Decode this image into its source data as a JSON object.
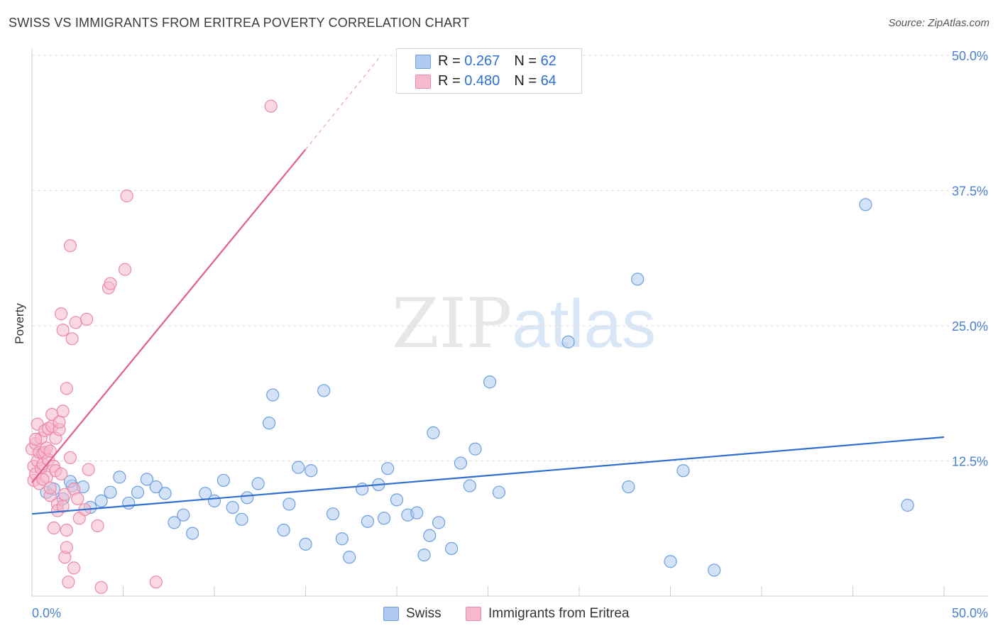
{
  "title": "SWISS VS IMMIGRANTS FROM ERITREA POVERTY CORRELATION CHART",
  "source": "Source: ZipAtlas.com",
  "watermark": {
    "zip": "ZIP",
    "atlas": "atlas"
  },
  "legend_stats": [
    {
      "r_label": "R =",
      "r_value": "0.267",
      "n_label": "N =",
      "n_value": "62",
      "color": "#aecbef"
    },
    {
      "r_label": "R =",
      "r_value": "0.480",
      "n_label": "N =",
      "n_value": "64",
      "color": "#f6b8cb"
    }
  ],
  "chart_data": {
    "type": "scatter",
    "title": "SWISS VS IMMIGRANTS FROM ERITREA POVERTY CORRELATION CHART",
    "xlabel": "",
    "ylabel": "Poverty",
    "xlim": [
      0,
      50
    ],
    "ylim": [
      0,
      50
    ],
    "x_tick_labels": [
      "0.0%",
      "50.0%"
    ],
    "y_tick_labels": [
      "12.5%",
      "25.0%",
      "37.5%",
      "50.0%"
    ],
    "y_ticks": [
      12.5,
      25.0,
      37.5,
      50.0
    ],
    "grid": "horizontal dashed",
    "legend_position": "bottom",
    "series": [
      {
        "name": "Swiss",
        "color": "#aecbef",
        "stroke": "#6c9fe0",
        "trend": {
          "x": [
            0,
            50
          ],
          "y": [
            7.6,
            14.7
          ],
          "color": "#2f6fd0"
        },
        "points": [
          [
            0.8,
            9.6
          ],
          [
            1.2,
            9.9
          ],
          [
            1.7,
            9.0
          ],
          [
            2.2,
            10.2
          ],
          [
            2.8,
            10.1
          ],
          [
            3.2,
            8.2
          ],
          [
            3.8,
            8.8
          ],
          [
            4.3,
            9.6
          ],
          [
            4.8,
            11.0
          ],
          [
            5.3,
            8.6
          ],
          [
            5.8,
            9.6
          ],
          [
            6.3,
            10.8
          ],
          [
            6.8,
            10.1
          ],
          [
            7.3,
            9.5
          ],
          [
            7.8,
            6.8
          ],
          [
            8.3,
            7.5
          ],
          [
            8.8,
            5.8
          ],
          [
            9.5,
            9.5
          ],
          [
            10.0,
            8.8
          ],
          [
            10.5,
            10.7
          ],
          [
            11.0,
            8.2
          ],
          [
            11.5,
            7.1
          ],
          [
            11.8,
            9.1
          ],
          [
            12.4,
            10.4
          ],
          [
            13.0,
            16.0
          ],
          [
            13.2,
            18.6
          ],
          [
            13.8,
            6.1
          ],
          [
            14.1,
            8.5
          ],
          [
            14.6,
            11.9
          ],
          [
            15.0,
            4.8
          ],
          [
            15.3,
            11.6
          ],
          [
            16.0,
            19.0
          ],
          [
            16.5,
            7.6
          ],
          [
            17.0,
            5.3
          ],
          [
            17.4,
            3.6
          ],
          [
            18.1,
            9.9
          ],
          [
            18.4,
            6.9
          ],
          [
            19.0,
            10.3
          ],
          [
            19.3,
            7.2
          ],
          [
            19.5,
            11.8
          ],
          [
            20.0,
            8.9
          ],
          [
            20.6,
            7.5
          ],
          [
            21.1,
            7.7
          ],
          [
            21.5,
            3.8
          ],
          [
            21.8,
            5.6
          ],
          [
            22.0,
            15.1
          ],
          [
            22.3,
            6.8
          ],
          [
            23.0,
            4.4
          ],
          [
            23.5,
            12.3
          ],
          [
            24.0,
            10.2
          ],
          [
            24.3,
            13.6
          ],
          [
            25.1,
            19.8
          ],
          [
            25.6,
            9.6
          ],
          [
            29.4,
            23.5
          ],
          [
            32.7,
            10.1
          ],
          [
            33.2,
            29.3
          ],
          [
            35.0,
            3.2
          ],
          [
            35.7,
            11.6
          ],
          [
            37.4,
            2.4
          ],
          [
            45.7,
            36.2
          ],
          [
            48.0,
            8.4
          ],
          [
            2.1,
            10.6
          ]
        ]
      },
      {
        "name": "Immigrants from Eritrea",
        "color": "#f6b8cb",
        "stroke": "#ea8aa8",
        "trend": {
          "x": [
            0,
            15
          ],
          "y": [
            10.5,
            41.3
          ],
          "color": "#e0608a"
        },
        "trend_dashed": {
          "x": [
            15,
            19
          ],
          "y": [
            41.3,
            49.7
          ],
          "color": "#e8a2b9"
        },
        "points": [
          [
            0.0,
            13.6
          ],
          [
            0.1,
            12.0
          ],
          [
            0.1,
            10.7
          ],
          [
            0.2,
            11.3
          ],
          [
            0.2,
            14.1
          ],
          [
            0.3,
            15.9
          ],
          [
            0.3,
            12.5
          ],
          [
            0.4,
            13.3
          ],
          [
            0.4,
            10.4
          ],
          [
            0.5,
            11.8
          ],
          [
            0.5,
            14.6
          ],
          [
            0.6,
            13.2
          ],
          [
            0.6,
            12.2
          ],
          [
            0.7,
            13.3
          ],
          [
            0.7,
            15.3
          ],
          [
            0.8,
            13.7
          ],
          [
            0.8,
            11.0
          ],
          [
            0.9,
            12.6
          ],
          [
            0.9,
            15.5
          ],
          [
            1.0,
            9.3
          ],
          [
            1.0,
            13.4
          ],
          [
            1.1,
            15.7
          ],
          [
            1.1,
            16.8
          ],
          [
            1.2,
            12.0
          ],
          [
            1.2,
            6.3
          ],
          [
            1.3,
            11.6
          ],
          [
            1.3,
            14.6
          ],
          [
            1.4,
            8.5
          ],
          [
            1.4,
            7.9
          ],
          [
            1.5,
            15.4
          ],
          [
            1.5,
            16.1
          ],
          [
            1.6,
            11.3
          ],
          [
            1.6,
            26.1
          ],
          [
            1.7,
            24.6
          ],
          [
            1.7,
            17.1
          ],
          [
            1.8,
            3.6
          ],
          [
            1.8,
            9.4
          ],
          [
            1.9,
            6.1
          ],
          [
            1.9,
            4.5
          ],
          [
            2.0,
            1.3
          ],
          [
            2.1,
            12.8
          ],
          [
            2.1,
            32.4
          ],
          [
            2.2,
            23.8
          ],
          [
            2.3,
            2.6
          ],
          [
            2.3,
            9.9
          ],
          [
            2.4,
            25.3
          ],
          [
            2.6,
            7.2
          ],
          [
            2.9,
            8.0
          ],
          [
            3.0,
            25.6
          ],
          [
            3.1,
            11.7
          ],
          [
            3.6,
            6.5
          ],
          [
            3.8,
            0.8
          ],
          [
            4.2,
            28.5
          ],
          [
            4.3,
            28.9
          ],
          [
            5.1,
            30.2
          ],
          [
            5.2,
            37.0
          ],
          [
            6.8,
            1.3
          ],
          [
            13.1,
            45.3
          ],
          [
            0.2,
            14.5
          ],
          [
            1.9,
            19.2
          ],
          [
            1.0,
            10.0
          ],
          [
            1.7,
            8.3
          ],
          [
            2.5,
            9.0
          ],
          [
            0.6,
            10.8
          ]
        ]
      }
    ]
  }
}
